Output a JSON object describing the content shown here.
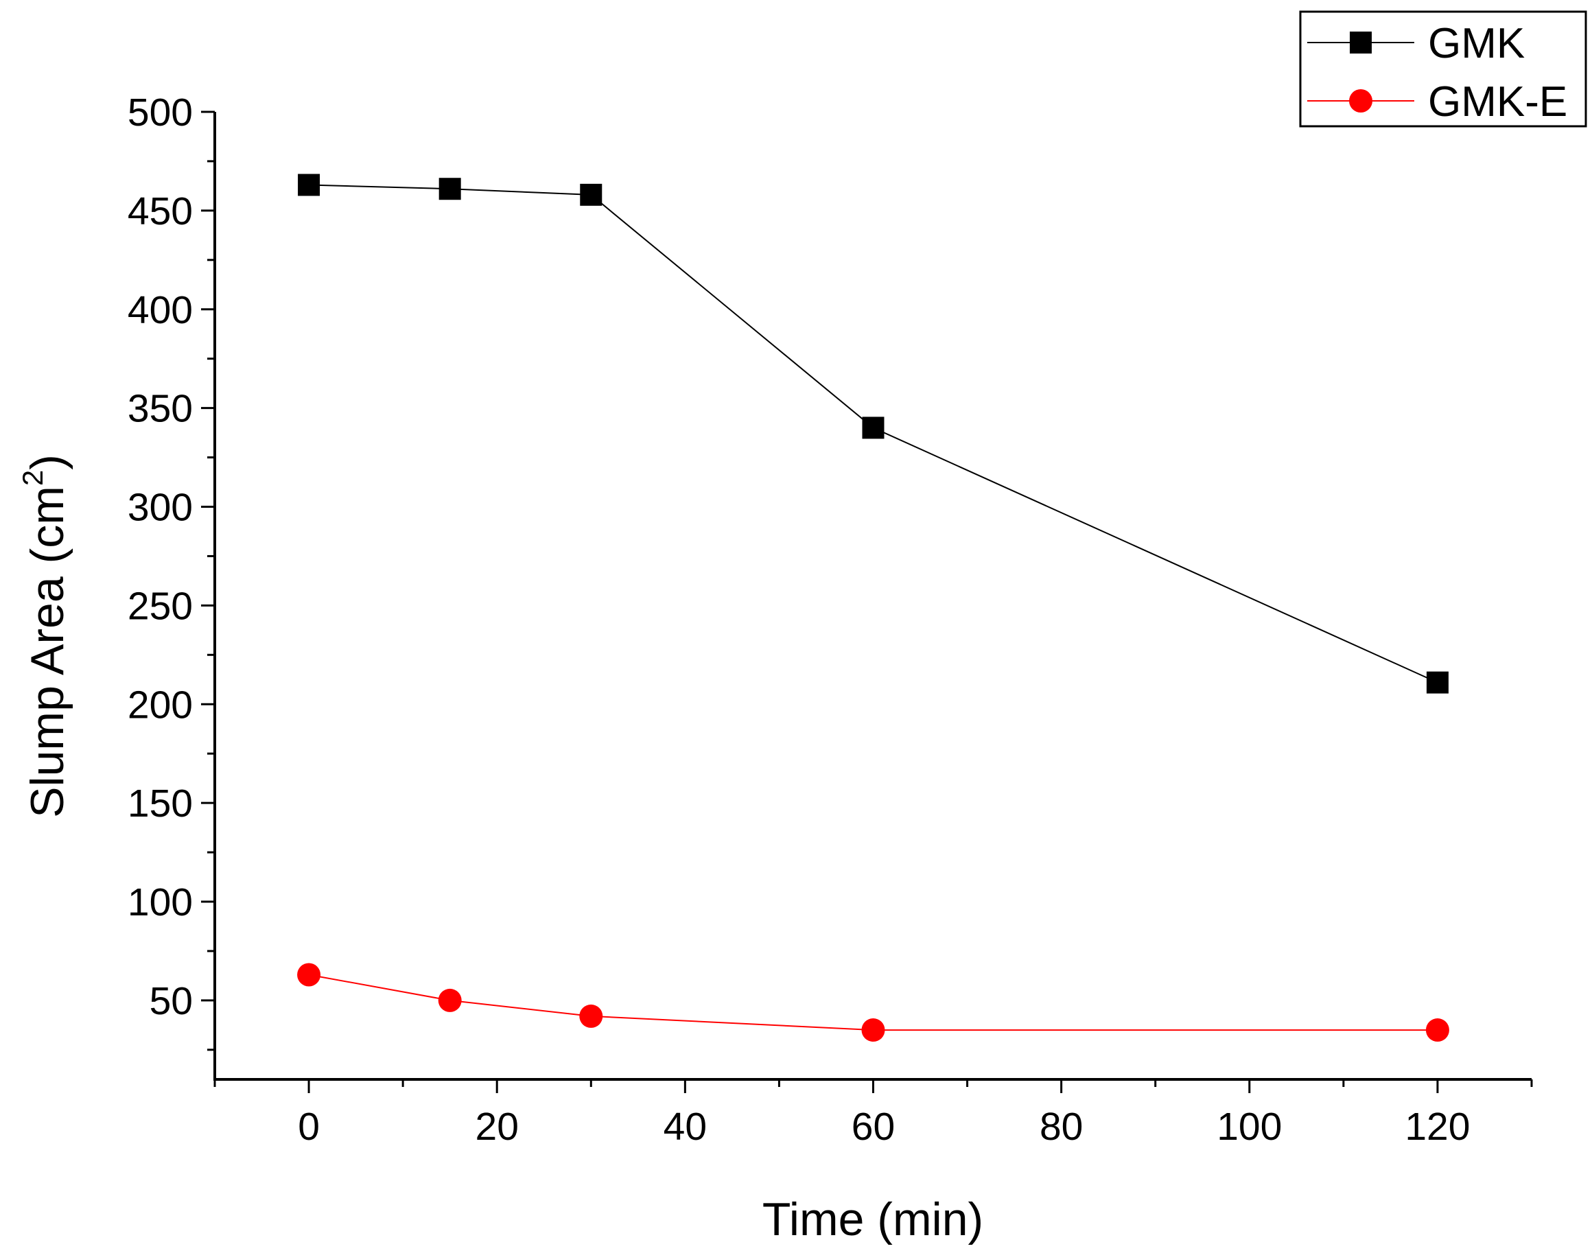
{
  "chart_data": {
    "type": "line",
    "title": "",
    "xlabel": "Time (min)",
    "ylabel": "Slump Area (cm",
    "ylabel_superscript": "2",
    "ylabel_suffix": ")",
    "xlim": [
      -10,
      130
    ],
    "ylim": [
      10,
      500
    ],
    "x_ticks": [
      0,
      20,
      40,
      60,
      80,
      100,
      120
    ],
    "x_tick_labels": [
      "0",
      "20",
      "40",
      "60",
      "80",
      "100",
      "120"
    ],
    "y_ticks": [
      50,
      100,
      150,
      200,
      250,
      300,
      350,
      400,
      450,
      500
    ],
    "y_tick_labels": [
      "50",
      "100",
      "150",
      "200",
      "250",
      "300",
      "350",
      "400",
      "450",
      "500"
    ],
    "grid": false,
    "legend_position": "top-right",
    "series": [
      {
        "name": "GMK",
        "color": "#000000",
        "marker": "square",
        "x": [
          0,
          15,
          30,
          60,
          120
        ],
        "y": [
          463,
          461,
          458,
          340,
          211
        ]
      },
      {
        "name": "GMK-E",
        "color": "#ff0000",
        "marker": "circle",
        "x": [
          0,
          15,
          30,
          60,
          120
        ],
        "y": [
          63,
          50,
          42,
          35,
          35
        ]
      }
    ]
  }
}
